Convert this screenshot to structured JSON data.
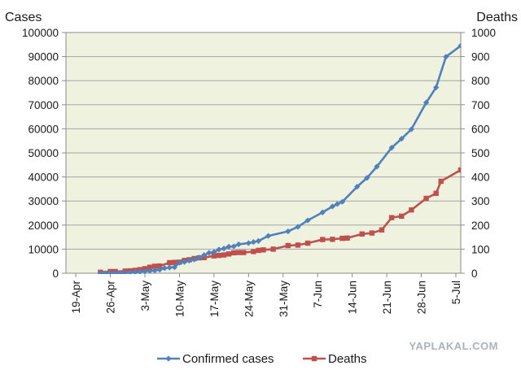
{
  "chart_data": {
    "type": "line",
    "ylabel": "Cases",
    "y2label": "Deaths",
    "ylim": [
      0,
      100000
    ],
    "y2lim": [
      0,
      1000
    ],
    "yticks": [
      "0",
      "10000",
      "20000",
      "30000",
      "40000",
      "50000",
      "60000",
      "70000",
      "80000",
      "90000",
      "100000"
    ],
    "y2ticks": [
      "0",
      "100",
      "200",
      "300",
      "400",
      "500",
      "600",
      "700",
      "800",
      "900",
      "1000"
    ],
    "xlim": [
      "2009-04-17",
      "2009-07-06"
    ],
    "xticks": [
      {
        "date": "2009-04-19",
        "label": "19-Apr"
      },
      {
        "date": "2009-04-26",
        "label": "26-Apr"
      },
      {
        "date": "2009-05-03",
        "label": "3-May"
      },
      {
        "date": "2009-05-10",
        "label": "10-May"
      },
      {
        "date": "2009-05-17",
        "label": "17-May"
      },
      {
        "date": "2009-05-24",
        "label": "24-May"
      },
      {
        "date": "2009-05-31",
        "label": "31-May"
      },
      {
        "date": "2009-06-07",
        "label": "7-Jun"
      },
      {
        "date": "2009-06-14",
        "label": "14-Jun"
      },
      {
        "date": "2009-06-21",
        "label": "21-Jun"
      },
      {
        "date": "2009-06-28",
        "label": "28-Jun"
      },
      {
        "date": "2009-07-05",
        "label": "5-Jul"
      }
    ],
    "grid": true,
    "legend_position": "bottom",
    "series": [
      {
        "name": "Confirmed cases",
        "axis": "left",
        "color": "#4f81bd",
        "marker": "diamond",
        "points": [
          {
            "x": "2009-04-24",
            "y": 0
          },
          {
            "x": "2009-04-25",
            "y": 20
          },
          {
            "x": "2009-04-26",
            "y": 40
          },
          {
            "x": "2009-04-27",
            "y": 73
          },
          {
            "x": "2009-04-28",
            "y": 105
          },
          {
            "x": "2009-04-29",
            "y": 148
          },
          {
            "x": "2009-04-30",
            "y": 257
          },
          {
            "x": "2009-05-01",
            "y": 367
          },
          {
            "x": "2009-05-02",
            "y": 658
          },
          {
            "x": "2009-05-03",
            "y": 787
          },
          {
            "x": "2009-05-04",
            "y": 985
          },
          {
            "x": "2009-05-05",
            "y": 1124
          },
          {
            "x": "2009-05-06",
            "y": 1490
          },
          {
            "x": "2009-05-07",
            "y": 2099
          },
          {
            "x": "2009-05-08",
            "y": 2371
          },
          {
            "x": "2009-05-09",
            "y": 2500
          },
          {
            "x": "2009-05-10",
            "y": 4379
          },
          {
            "x": "2009-05-11",
            "y": 4694
          },
          {
            "x": "2009-05-12",
            "y": 5251
          },
          {
            "x": "2009-05-13",
            "y": 5728
          },
          {
            "x": "2009-05-14",
            "y": 6497
          },
          {
            "x": "2009-05-15",
            "y": 7520
          },
          {
            "x": "2009-05-16",
            "y": 8480
          },
          {
            "x": "2009-05-17",
            "y": 8829
          },
          {
            "x": "2009-05-18",
            "y": 9830
          },
          {
            "x": "2009-05-19",
            "y": 10243
          },
          {
            "x": "2009-05-20",
            "y": 11034
          },
          {
            "x": "2009-05-21",
            "y": 11168
          },
          {
            "x": "2009-05-22",
            "y": 12022
          },
          {
            "x": "2009-05-24",
            "y": 12515
          },
          {
            "x": "2009-05-25",
            "y": 12954
          },
          {
            "x": "2009-05-26",
            "y": 13398
          },
          {
            "x": "2009-05-28",
            "y": 15510
          },
          {
            "x": "2009-06-01",
            "y": 17410
          },
          {
            "x": "2009-06-03",
            "y": 19273
          },
          {
            "x": "2009-06-05",
            "y": 21940
          },
          {
            "x": "2009-06-08",
            "y": 25288
          },
          {
            "x": "2009-06-10",
            "y": 27737
          },
          {
            "x": "2009-06-11",
            "y": 28774
          },
          {
            "x": "2009-06-12",
            "y": 29669
          },
          {
            "x": "2009-06-15",
            "y": 35928
          },
          {
            "x": "2009-06-17",
            "y": 39620
          },
          {
            "x": "2009-06-19",
            "y": 44287
          },
          {
            "x": "2009-06-22",
            "y": 52160
          },
          {
            "x": "2009-06-24",
            "y": 55867
          },
          {
            "x": "2009-06-26",
            "y": 59814
          },
          {
            "x": "2009-06-29",
            "y": 70893
          },
          {
            "x": "2009-07-01",
            "y": 77201
          },
          {
            "x": "2009-07-03",
            "y": 89921
          },
          {
            "x": "2009-07-06",
            "y": 94512
          }
        ]
      },
      {
        "name": "Deaths",
        "axis": "right",
        "color": "#c0504d",
        "marker": "square",
        "points": [
          {
            "x": "2009-04-24",
            "y": 4
          },
          {
            "x": "2009-04-26",
            "y": 7
          },
          {
            "x": "2009-04-27",
            "y": 7
          },
          {
            "x": "2009-04-29",
            "y": 9
          },
          {
            "x": "2009-04-30",
            "y": 10
          },
          {
            "x": "2009-05-01",
            "y": 12
          },
          {
            "x": "2009-05-02",
            "y": 15
          },
          {
            "x": "2009-05-03",
            "y": 19
          },
          {
            "x": "2009-05-04",
            "y": 25
          },
          {
            "x": "2009-05-05",
            "y": 29
          },
          {
            "x": "2009-05-06",
            "y": 30
          },
          {
            "x": "2009-05-08",
            "y": 44
          },
          {
            "x": "2009-05-09",
            "y": 45
          },
          {
            "x": "2009-05-10",
            "y": 46
          },
          {
            "x": "2009-05-11",
            "y": 53
          },
          {
            "x": "2009-05-12",
            "y": 56
          },
          {
            "x": "2009-05-13",
            "y": 61
          },
          {
            "x": "2009-05-14",
            "y": 64
          },
          {
            "x": "2009-05-15",
            "y": 65
          },
          {
            "x": "2009-05-17",
            "y": 72
          },
          {
            "x": "2009-05-18",
            "y": 74
          },
          {
            "x": "2009-05-19",
            "y": 76
          },
          {
            "x": "2009-05-20",
            "y": 80
          },
          {
            "x": "2009-05-21",
            "y": 85
          },
          {
            "x": "2009-05-22",
            "y": 86
          },
          {
            "x": "2009-05-23",
            "y": 86
          },
          {
            "x": "2009-05-25",
            "y": 90
          },
          {
            "x": "2009-05-26",
            "y": 95
          },
          {
            "x": "2009-05-27",
            "y": 97
          },
          {
            "x": "2009-05-29",
            "y": 100
          },
          {
            "x": "2009-06-01",
            "y": 115
          },
          {
            "x": "2009-06-03",
            "y": 117
          },
          {
            "x": "2009-06-05",
            "y": 125
          },
          {
            "x": "2009-06-08",
            "y": 140
          },
          {
            "x": "2009-06-10",
            "y": 141
          },
          {
            "x": "2009-06-12",
            "y": 145
          },
          {
            "x": "2009-06-13",
            "y": 146
          },
          {
            "x": "2009-06-16",
            "y": 163
          },
          {
            "x": "2009-06-18",
            "y": 167
          },
          {
            "x": "2009-06-20",
            "y": 180
          },
          {
            "x": "2009-06-22",
            "y": 231
          },
          {
            "x": "2009-06-24",
            "y": 237
          },
          {
            "x": "2009-06-26",
            "y": 263
          },
          {
            "x": "2009-06-29",
            "y": 311
          },
          {
            "x": "2009-07-01",
            "y": 332
          },
          {
            "x": "2009-07-02",
            "y": 382
          },
          {
            "x": "2009-07-06",
            "y": 429
          }
        ]
      }
    ]
  },
  "watermark": "YAPLAKAL.COM"
}
